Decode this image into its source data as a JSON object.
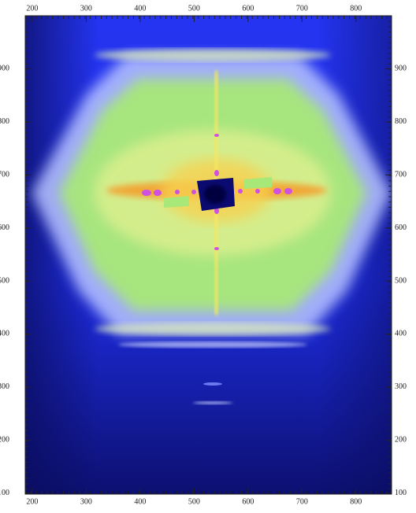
{
  "chart_data": {
    "type": "image",
    "xlim": [
      187,
      866
    ],
    "xticks": [
      200,
      300,
      400,
      500,
      600,
      700,
      800
    ],
    "ylim": [
      98,
      1000
    ],
    "yticks": [
      100,
      200,
      300,
      400,
      500,
      600,
      700,
      800,
      900
    ]
  }
}
